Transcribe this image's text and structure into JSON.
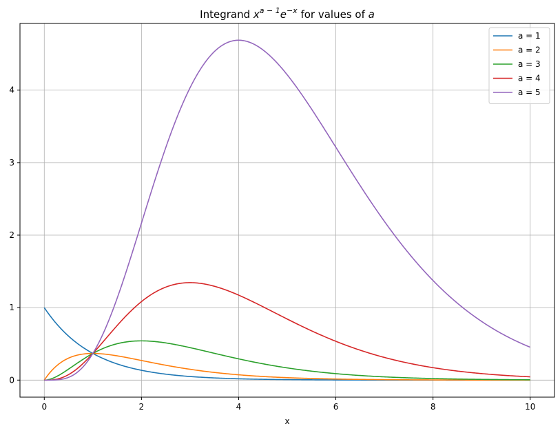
{
  "chart_data": {
    "type": "line",
    "title": {
      "prefix": "Integrand ",
      "x_symbol": "x",
      "x_exponent": "a − 1",
      "e_symbol": "e",
      "e_exponent": "−x",
      "suffix": " for values of ",
      "param": "a"
    },
    "xlabel": "x",
    "ylabel": "",
    "xlim": [
      -0.5,
      10.5
    ],
    "ylim": [
      -0.235,
      4.92
    ],
    "xticks": [
      0,
      2,
      4,
      6,
      8,
      10
    ],
    "yticks": [
      0,
      1,
      2,
      3,
      4
    ],
    "grid": true,
    "legend_position": "top-right",
    "function": "x^(a-1) * e^(-x)",
    "x_range": [
      0,
      10
    ],
    "series": [
      {
        "name": "a = 1",
        "a": 1,
        "color": "#1f77b4"
      },
      {
        "name": "a = 2",
        "a": 2,
        "color": "#ff7f0e"
      },
      {
        "name": "a = 3",
        "a": 3,
        "color": "#2ca02c"
      },
      {
        "name": "a = 4",
        "a": 4,
        "color": "#d62728"
      },
      {
        "name": "a = 5",
        "a": 5,
        "color": "#9467bd"
      }
    ]
  }
}
